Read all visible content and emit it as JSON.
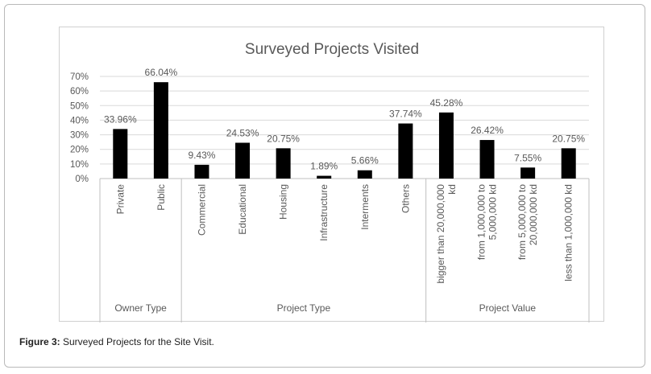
{
  "figure": {
    "caption_label": "Figure 3:",
    "caption_text": " Surveyed Projects for the Site Visit."
  },
  "chart_data": {
    "type": "bar",
    "title": "Surveyed Projects Visited",
    "ylim": [
      0,
      70
    ],
    "yticks": [
      "0%",
      "10%",
      "20%",
      "30%",
      "40%",
      "50%",
      "60%",
      "70%"
    ],
    "grid": true,
    "bar_color": "#000000",
    "groups": [
      {
        "name": "Owner Type",
        "categories": [
          {
            "label": [
              "Private"
            ],
            "value": 33.96,
            "value_label": "33.96%"
          },
          {
            "label": [
              "Public"
            ],
            "value": 66.04,
            "value_label": "66.04%"
          }
        ]
      },
      {
        "name": "Project Type",
        "categories": [
          {
            "label": [
              "Commercial"
            ],
            "value": 9.43,
            "value_label": "9.43%"
          },
          {
            "label": [
              "Educational"
            ],
            "value": 24.53,
            "value_label": "24.53%"
          },
          {
            "label": [
              "Housing"
            ],
            "value": 20.75,
            "value_label": "20.75%"
          },
          {
            "label": [
              "Infrastructure"
            ],
            "value": 1.89,
            "value_label": "1.89%"
          },
          {
            "label": [
              "Interments"
            ],
            "value": 5.66,
            "value_label": "5.66%"
          },
          {
            "label": [
              "Others"
            ],
            "value": 37.74,
            "value_label": "37.74%"
          }
        ]
      },
      {
        "name": "Project Value",
        "categories": [
          {
            "label": [
              "bigger than 20,000,000",
              "kd"
            ],
            "value": 45.28,
            "value_label": "45.28%"
          },
          {
            "label": [
              "from 1,000,000 to",
              "5,000,000 kd"
            ],
            "value": 26.42,
            "value_label": "26.42%"
          },
          {
            "label": [
              "from 5,000,000 to",
              "20,000,000 kd"
            ],
            "value": 7.55,
            "value_label": "7.55%"
          },
          {
            "label": [
              "less than 1,000,000 kd"
            ],
            "value": 20.75,
            "value_label": "20.75%"
          }
        ]
      }
    ]
  }
}
